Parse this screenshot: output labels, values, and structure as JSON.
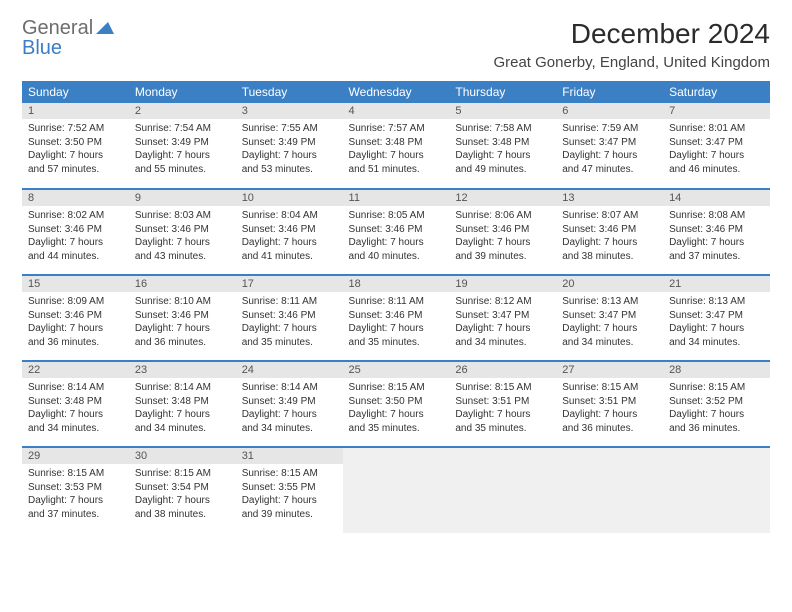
{
  "logo": {
    "word1": "General",
    "word2": "Blue",
    "icon_color": "#3b7fc4"
  },
  "title": "December 2024",
  "location": "Great Gonerby, England, United Kingdom",
  "header_bg": "#3b7fc4",
  "weekdays": [
    "Sunday",
    "Monday",
    "Tuesday",
    "Wednesday",
    "Thursday",
    "Friday",
    "Saturday"
  ],
  "weeks": [
    [
      {
        "day": "1",
        "sunrise": "Sunrise: 7:52 AM",
        "sunset": "Sunset: 3:50 PM",
        "daylight1": "Daylight: 7 hours",
        "daylight2": "and 57 minutes."
      },
      {
        "day": "2",
        "sunrise": "Sunrise: 7:54 AM",
        "sunset": "Sunset: 3:49 PM",
        "daylight1": "Daylight: 7 hours",
        "daylight2": "and 55 minutes."
      },
      {
        "day": "3",
        "sunrise": "Sunrise: 7:55 AM",
        "sunset": "Sunset: 3:49 PM",
        "daylight1": "Daylight: 7 hours",
        "daylight2": "and 53 minutes."
      },
      {
        "day": "4",
        "sunrise": "Sunrise: 7:57 AM",
        "sunset": "Sunset: 3:48 PM",
        "daylight1": "Daylight: 7 hours",
        "daylight2": "and 51 minutes."
      },
      {
        "day": "5",
        "sunrise": "Sunrise: 7:58 AM",
        "sunset": "Sunset: 3:48 PM",
        "daylight1": "Daylight: 7 hours",
        "daylight2": "and 49 minutes."
      },
      {
        "day": "6",
        "sunrise": "Sunrise: 7:59 AM",
        "sunset": "Sunset: 3:47 PM",
        "daylight1": "Daylight: 7 hours",
        "daylight2": "and 47 minutes."
      },
      {
        "day": "7",
        "sunrise": "Sunrise: 8:01 AM",
        "sunset": "Sunset: 3:47 PM",
        "daylight1": "Daylight: 7 hours",
        "daylight2": "and 46 minutes."
      }
    ],
    [
      {
        "day": "8",
        "sunrise": "Sunrise: 8:02 AM",
        "sunset": "Sunset: 3:46 PM",
        "daylight1": "Daylight: 7 hours",
        "daylight2": "and 44 minutes."
      },
      {
        "day": "9",
        "sunrise": "Sunrise: 8:03 AM",
        "sunset": "Sunset: 3:46 PM",
        "daylight1": "Daylight: 7 hours",
        "daylight2": "and 43 minutes."
      },
      {
        "day": "10",
        "sunrise": "Sunrise: 8:04 AM",
        "sunset": "Sunset: 3:46 PM",
        "daylight1": "Daylight: 7 hours",
        "daylight2": "and 41 minutes."
      },
      {
        "day": "11",
        "sunrise": "Sunrise: 8:05 AM",
        "sunset": "Sunset: 3:46 PM",
        "daylight1": "Daylight: 7 hours",
        "daylight2": "and 40 minutes."
      },
      {
        "day": "12",
        "sunrise": "Sunrise: 8:06 AM",
        "sunset": "Sunset: 3:46 PM",
        "daylight1": "Daylight: 7 hours",
        "daylight2": "and 39 minutes."
      },
      {
        "day": "13",
        "sunrise": "Sunrise: 8:07 AM",
        "sunset": "Sunset: 3:46 PM",
        "daylight1": "Daylight: 7 hours",
        "daylight2": "and 38 minutes."
      },
      {
        "day": "14",
        "sunrise": "Sunrise: 8:08 AM",
        "sunset": "Sunset: 3:46 PM",
        "daylight1": "Daylight: 7 hours",
        "daylight2": "and 37 minutes."
      }
    ],
    [
      {
        "day": "15",
        "sunrise": "Sunrise: 8:09 AM",
        "sunset": "Sunset: 3:46 PM",
        "daylight1": "Daylight: 7 hours",
        "daylight2": "and 36 minutes."
      },
      {
        "day": "16",
        "sunrise": "Sunrise: 8:10 AM",
        "sunset": "Sunset: 3:46 PM",
        "daylight1": "Daylight: 7 hours",
        "daylight2": "and 36 minutes."
      },
      {
        "day": "17",
        "sunrise": "Sunrise: 8:11 AM",
        "sunset": "Sunset: 3:46 PM",
        "daylight1": "Daylight: 7 hours",
        "daylight2": "and 35 minutes."
      },
      {
        "day": "18",
        "sunrise": "Sunrise: 8:11 AM",
        "sunset": "Sunset: 3:46 PM",
        "daylight1": "Daylight: 7 hours",
        "daylight2": "and 35 minutes."
      },
      {
        "day": "19",
        "sunrise": "Sunrise: 8:12 AM",
        "sunset": "Sunset: 3:47 PM",
        "daylight1": "Daylight: 7 hours",
        "daylight2": "and 34 minutes."
      },
      {
        "day": "20",
        "sunrise": "Sunrise: 8:13 AM",
        "sunset": "Sunset: 3:47 PM",
        "daylight1": "Daylight: 7 hours",
        "daylight2": "and 34 minutes."
      },
      {
        "day": "21",
        "sunrise": "Sunrise: 8:13 AM",
        "sunset": "Sunset: 3:47 PM",
        "daylight1": "Daylight: 7 hours",
        "daylight2": "and 34 minutes."
      }
    ],
    [
      {
        "day": "22",
        "sunrise": "Sunrise: 8:14 AM",
        "sunset": "Sunset: 3:48 PM",
        "daylight1": "Daylight: 7 hours",
        "daylight2": "and 34 minutes."
      },
      {
        "day": "23",
        "sunrise": "Sunrise: 8:14 AM",
        "sunset": "Sunset: 3:48 PM",
        "daylight1": "Daylight: 7 hours",
        "daylight2": "and 34 minutes."
      },
      {
        "day": "24",
        "sunrise": "Sunrise: 8:14 AM",
        "sunset": "Sunset: 3:49 PM",
        "daylight1": "Daylight: 7 hours",
        "daylight2": "and 34 minutes."
      },
      {
        "day": "25",
        "sunrise": "Sunrise: 8:15 AM",
        "sunset": "Sunset: 3:50 PM",
        "daylight1": "Daylight: 7 hours",
        "daylight2": "and 35 minutes."
      },
      {
        "day": "26",
        "sunrise": "Sunrise: 8:15 AM",
        "sunset": "Sunset: 3:51 PM",
        "daylight1": "Daylight: 7 hours",
        "daylight2": "and 35 minutes."
      },
      {
        "day": "27",
        "sunrise": "Sunrise: 8:15 AM",
        "sunset": "Sunset: 3:51 PM",
        "daylight1": "Daylight: 7 hours",
        "daylight2": "and 36 minutes."
      },
      {
        "day": "28",
        "sunrise": "Sunrise: 8:15 AM",
        "sunset": "Sunset: 3:52 PM",
        "daylight1": "Daylight: 7 hours",
        "daylight2": "and 36 minutes."
      }
    ],
    [
      {
        "day": "29",
        "sunrise": "Sunrise: 8:15 AM",
        "sunset": "Sunset: 3:53 PM",
        "daylight1": "Daylight: 7 hours",
        "daylight2": "and 37 minutes."
      },
      {
        "day": "30",
        "sunrise": "Sunrise: 8:15 AM",
        "sunset": "Sunset: 3:54 PM",
        "daylight1": "Daylight: 7 hours",
        "daylight2": "and 38 minutes."
      },
      {
        "day": "31",
        "sunrise": "Sunrise: 8:15 AM",
        "sunset": "Sunset: 3:55 PM",
        "daylight1": "Daylight: 7 hours",
        "daylight2": "and 39 minutes."
      },
      null,
      null,
      null,
      null
    ]
  ]
}
